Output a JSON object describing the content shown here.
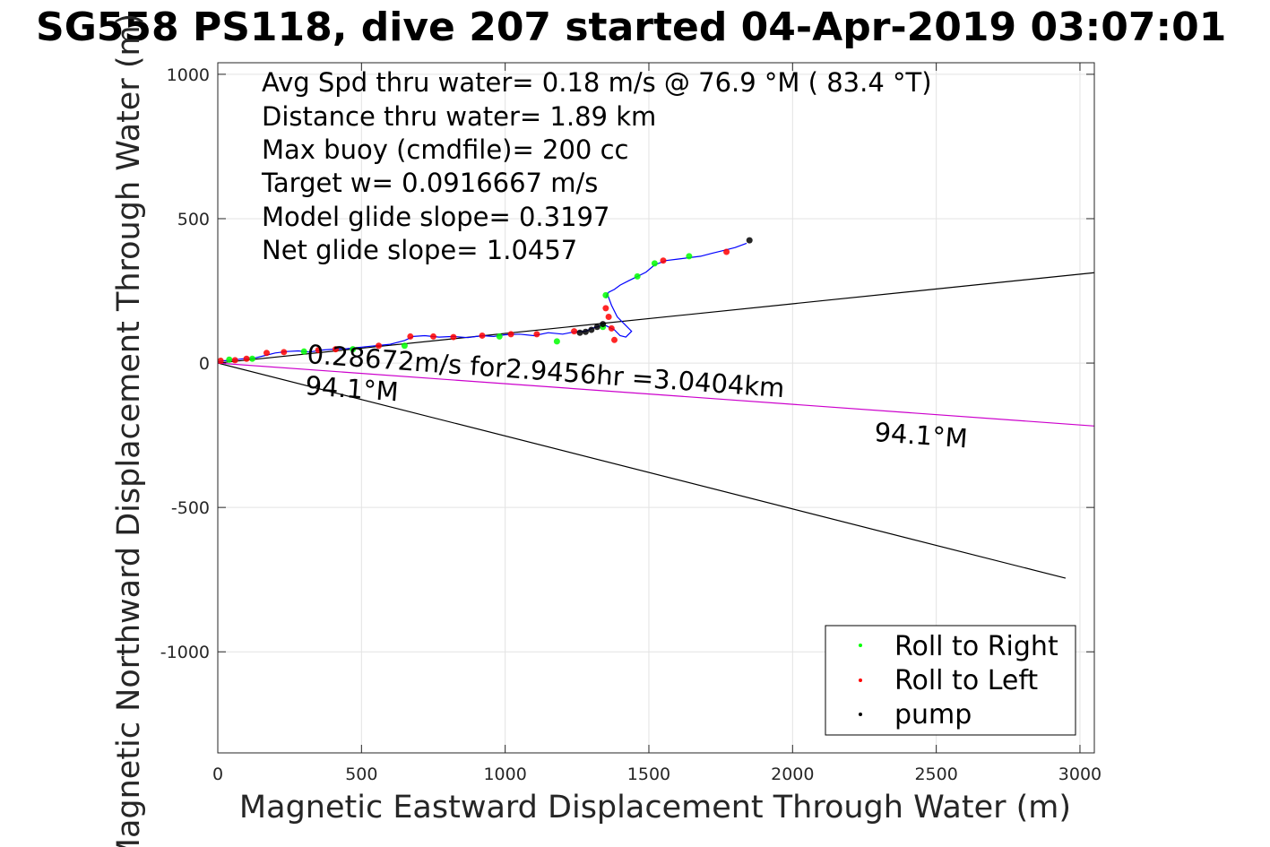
{
  "chart_data": {
    "type": "line",
    "title": "SG558 PS118, dive 207 started 04-Apr-2019 03:07:01",
    "xlabel": "Magnetic Eastward Displacement Through Water (m)",
    "ylabel": "Magnetic Northward Displacement Through Water (m)",
    "xlim": [
      0,
      3050
    ],
    "ylim": [
      -1350,
      1040
    ],
    "xticks": [
      0,
      500,
      1000,
      1500,
      2000,
      2500,
      3000
    ],
    "yticks": [
      1000,
      500,
      0,
      -500,
      -1000
    ],
    "xtick_labels": [
      "0",
      "500",
      "1000",
      "1500",
      "2000",
      "2500",
      "3000"
    ],
    "ytick_labels": [
      "1000",
      "500",
      "0",
      "-500",
      "-1000"
    ],
    "grid": true,
    "legend_position": "bottom-right",
    "info_lines": [
      "Avg Spd thru water=  0.18 m/s @  76.9 °M ( 83.4 °T)",
      "Distance thru water=  1.89 km",
      "Max buoy (cmdfile)= 200 cc",
      "Target w= 0.0916667 m/s",
      "Model glide slope= 0.3197",
      "Net glide slope= 1.0457"
    ],
    "annotations": [
      "0.28672m/s for2.9456hr =3.0404km",
      "94.1°M",
      "94.1°M"
    ],
    "legend": [
      "Roll to Right",
      "Roll to Left",
      "pump"
    ],
    "reference_lines": [
      {
        "x": [
          0,
          3050
        ],
        "y": [
          0,
          313
        ],
        "color": "#000000"
      },
      {
        "x": [
          0,
          2950
        ],
        "y": [
          0,
          -745
        ],
        "color": "#000000"
      },
      {
        "x": [
          0,
          3050
        ],
        "y": [
          0,
          -218
        ],
        "color": "#cc00cc"
      }
    ],
    "series": [
      {
        "name": "track",
        "color": "#0000ff",
        "x": [
          0,
          20,
          50,
          90,
          130,
          160,
          200,
          240,
          280,
          320,
          360,
          400,
          450,
          500,
          550,
          600,
          650,
          680,
          720,
          770,
          820,
          870,
          920,
          960,
          1000,
          1050,
          1100,
          1150,
          1200,
          1240,
          1280,
          1300,
          1320,
          1340,
          1360,
          1380,
          1400,
          1420,
          1440,
          1420,
          1390,
          1370,
          1355,
          1350,
          1360,
          1380,
          1400,
          1430,
          1460,
          1490,
          1520,
          1560,
          1600,
          1640,
          1680,
          1720,
          1760,
          1800,
          1840
        ],
        "y": [
          5,
          8,
          10,
          15,
          18,
          25,
          35,
          40,
          42,
          38,
          45,
          48,
          50,
          55,
          60,
          65,
          78,
          92,
          95,
          90,
          92,
          88,
          95,
          92,
          98,
          100,
          95,
          105,
          100,
          108,
          110,
          120,
          125,
          135,
          125,
          115,
          95,
          90,
          110,
          130,
          160,
          200,
          240,
          225,
          245,
          255,
          270,
          285,
          300,
          315,
          340,
          355,
          360,
          365,
          370,
          380,
          390,
          400,
          415
        ]
      },
      {
        "name": "Roll to Right",
        "color": "#00ff00",
        "x": [
          40,
          120,
          300,
          470,
          650,
          980,
          1180,
          1340,
          1350,
          1460,
          1520,
          1640
        ],
        "y": [
          12,
          15,
          40,
          48,
          60,
          92,
          75,
          125,
          235,
          300,
          345,
          370
        ]
      },
      {
        "name": "Roll to Left",
        "color": "#ff0000",
        "x": [
          10,
          60,
          100,
          170,
          230,
          350,
          410,
          560,
          670,
          750,
          820,
          920,
          1020,
          1110,
          1240,
          1350,
          1360,
          1370,
          1380,
          1550,
          1770
        ],
        "y": [
          8,
          10,
          15,
          35,
          38,
          45,
          48,
          60,
          92,
          92,
          90,
          95,
          100,
          100,
          110,
          190,
          160,
          120,
          80,
          355,
          385
        ]
      },
      {
        "name": "pump",
        "color": "#000000",
        "x": [
          1260,
          1280,
          1300,
          1320,
          1340,
          1850
        ],
        "y": [
          105,
          108,
          115,
          125,
          135,
          425
        ]
      }
    ]
  }
}
